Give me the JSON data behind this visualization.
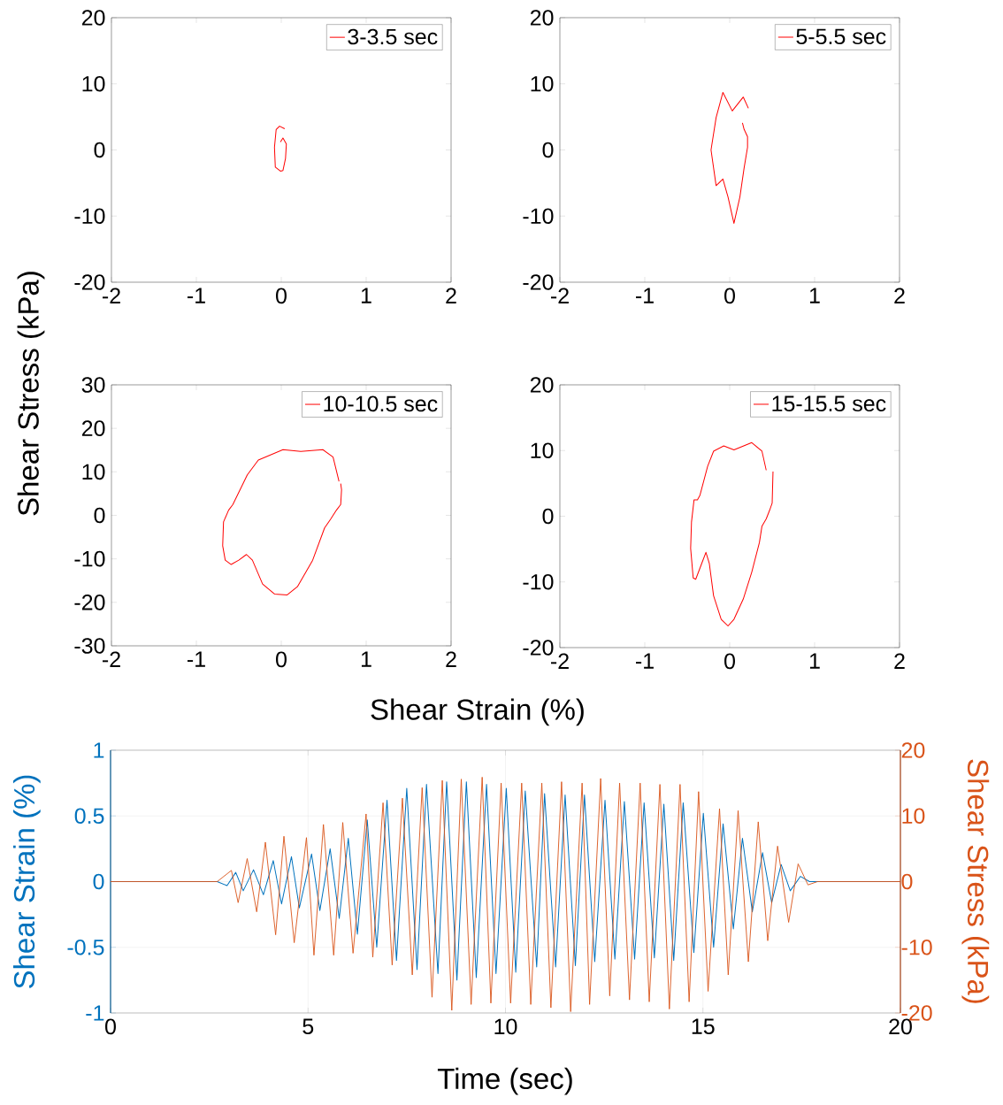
{
  "chart_data": [
    {
      "type": "line",
      "ylabel": "Shear Stress (kPa)",
      "xlim": [
        -2,
        2
      ],
      "ylim": [
        -20,
        20
      ],
      "xticks": [
        -2,
        -1,
        0,
        1,
        2
      ],
      "yticks": [
        -20,
        -10,
        0,
        10,
        20
      ],
      "legend": "top right",
      "series": [
        {
          "name": "3-3.5 sec",
          "color": "#ff0000",
          "x": [
            0.04,
            -0.02,
            -0.06,
            -0.08,
            -0.07,
            -0.01,
            0.02,
            0.05,
            0.06,
            0.02,
            -0.01
          ],
          "values": [
            3.2,
            3.6,
            3.1,
            0.4,
            -2.6,
            -3.2,
            -3.1,
            -1.3,
            0.9,
            1.8,
            1.2
          ]
        }
      ]
    },
    {
      "type": "line",
      "xlim": [
        -2,
        2
      ],
      "ylim": [
        -20,
        20
      ],
      "xticks": [
        -2,
        -1,
        0,
        1,
        2
      ],
      "yticks": [
        -20,
        -10,
        0,
        10,
        20
      ],
      "legend": "top right",
      "series": [
        {
          "name": "5-5.5 sec",
          "color": "#ff0000",
          "x": [
            0.22,
            0.16,
            0.03,
            -0.08,
            -0.16,
            -0.22,
            -0.16,
            -0.08,
            -0.02,
            0.05,
            0.12,
            0.17,
            0.21,
            0.21,
            0.17,
            0.15
          ],
          "values": [
            6.3,
            8.0,
            5.9,
            8.7,
            4.9,
            0,
            -5.4,
            -4.4,
            -7.1,
            -11.1,
            -7.1,
            -2.7,
            0.4,
            2.0,
            3.1,
            4.1
          ]
        }
      ]
    },
    {
      "type": "line",
      "xlabel": "Shear Strain (%)",
      "xlim": [
        -2,
        2
      ],
      "ylim": [
        -30,
        30
      ],
      "xticks": [
        -2,
        -1,
        0,
        1,
        2
      ],
      "yticks": [
        -30,
        -20,
        -10,
        0,
        10,
        20,
        30
      ],
      "legend": "top right",
      "series": [
        {
          "name": "10-10.5 sec",
          "color": "#ff0000",
          "x": [
            0.68,
            0.61,
            0.49,
            0.23,
            0.02,
            -0.27,
            -0.4,
            -0.57,
            -0.62,
            -0.68,
            -0.69,
            -0.66,
            -0.59,
            -0.5,
            -0.41,
            -0.34,
            -0.22,
            -0.08,
            0.07,
            0.19,
            0.37,
            0.51,
            0.58,
            0.65,
            0.7,
            0.71,
            0.7
          ],
          "values": [
            7.8,
            13.4,
            15.1,
            14.7,
            15.1,
            12.7,
            9.3,
            2.5,
            1.2,
            -1.5,
            -7.0,
            -10.3,
            -11.3,
            -10.3,
            -9.0,
            -10.3,
            -15.8,
            -18.1,
            -18.3,
            -16.4,
            -10.3,
            -2.9,
            -0.9,
            1.2,
            2.5,
            5.9,
            7.3
          ]
        }
      ]
    },
    {
      "type": "line",
      "xlim": [
        -2,
        2
      ],
      "ylim": [
        -20,
        20
      ],
      "xticks": [
        -2,
        -1,
        0,
        1,
        2
      ],
      "yticks": [
        -20,
        -10,
        0,
        10,
        20
      ],
      "legend": "top right",
      "series": [
        {
          "name": "15-15.5 sec",
          "color": "#ff0000",
          "x": [
            0.43,
            0.38,
            0.26,
            0.05,
            -0.07,
            -0.19,
            -0.26,
            -0.35,
            -0.38,
            -0.42,
            -0.45,
            -0.46,
            -0.43,
            -0.4,
            -0.33,
            -0.28,
            -0.24,
            -0.19,
            -0.1,
            -0.02,
            0.05,
            0.16,
            0.26,
            0.35,
            0.38,
            0.43,
            0.47,
            0.5,
            0.51
          ],
          "values": [
            7.0,
            9.9,
            11.2,
            10.1,
            10.7,
            9.9,
            7.6,
            3.2,
            2.5,
            2.5,
            -0.9,
            -4.9,
            -9.4,
            -9.6,
            -7.2,
            -5.5,
            -7.2,
            -12.1,
            -15.7,
            -16.7,
            -15.7,
            -12.6,
            -8.5,
            -4.0,
            -1.5,
            -0.4,
            0.9,
            2.0,
            6.8
          ]
        }
      ]
    },
    {
      "type": "line",
      "xlabel": "Time (sec)",
      "ylabel": "Shear Strain (%)",
      "y2label": "Shear Stress (kPa)",
      "xlim": [
        0,
        20
      ],
      "ylim": [
        -1,
        1
      ],
      "y2lim": [
        -20,
        20
      ],
      "xticks": [
        0,
        5,
        10,
        15,
        20
      ],
      "yticks": [
        -1,
        -0.5,
        0,
        0.5,
        1
      ],
      "y2ticks": [
        -20,
        -10,
        0,
        10,
        20
      ],
      "grid": true,
      "series": [
        {
          "color": "#0072bd",
          "x": [
            0,
            2.7,
            2.95,
            3.17,
            3.36,
            3.62,
            3.87,
            4.12,
            4.33,
            4.58,
            4.78,
            5.09,
            5.3,
            5.56,
            5.79,
            6.02,
            6.25,
            6.5,
            6.74,
            7.0,
            7.24,
            7.5,
            7.76,
            8.0,
            8.29,
            8.51,
            8.77,
            9.01,
            9.26,
            9.52,
            9.76,
            10.02,
            10.26,
            10.5,
            10.79,
            10.99,
            11.27,
            11.51,
            11.77,
            12.0,
            12.26,
            12.52,
            12.77,
            13.01,
            13.27,
            13.51,
            13.77,
            14.01,
            14.26,
            14.5,
            14.77,
            15.01,
            15.27,
            15.51,
            15.77,
            16.0,
            16.25,
            16.51,
            16.74,
            16.98,
            17.21,
            17.47,
            17.7,
            20
          ],
          "values": [
            0,
            0,
            -0.03,
            0.07,
            -0.07,
            0.09,
            -0.1,
            0.16,
            -0.17,
            0.19,
            -0.2,
            0.21,
            -0.22,
            0.25,
            -0.28,
            0.33,
            -0.4,
            0.47,
            -0.5,
            0.62,
            -0.6,
            0.71,
            -0.67,
            0.74,
            -0.7,
            0.76,
            -0.75,
            0.76,
            -0.73,
            0.74,
            -0.7,
            0.71,
            -0.69,
            0.69,
            -0.65,
            0.67,
            -0.65,
            0.66,
            -0.64,
            0.66,
            -0.61,
            0.62,
            -0.59,
            0.61,
            -0.59,
            0.6,
            -0.58,
            0.59,
            -0.6,
            0.6,
            -0.54,
            0.52,
            -0.5,
            0.44,
            -0.36,
            0.33,
            -0.23,
            0.22,
            -0.16,
            0.13,
            -0.07,
            0.04,
            0,
            0
          ]
        },
        {
          "color": "#d95319",
          "axis": "y2",
          "x": [
            0,
            2.7,
            3.06,
            3.23,
            3.46,
            3.7,
            3.92,
            4.18,
            4.39,
            4.65,
            4.96,
            5.15,
            5.39,
            5.65,
            5.88,
            6.14,
            6.47,
            6.64,
            6.9,
            7.13,
            7.39,
            7.64,
            7.89,
            8.14,
            8.4,
            8.64,
            8.88,
            9.13,
            9.41,
            9.63,
            9.89,
            10.13,
            10.41,
            10.64,
            10.92,
            11.15,
            11.42,
            11.65,
            11.94,
            12.13,
            12.41,
            12.64,
            12.89,
            13.14,
            13.41,
            13.64,
            13.91,
            14.15,
            14.42,
            14.65,
            14.89,
            15.13,
            15.42,
            15.64,
            15.89,
            16.15,
            16.4,
            16.64,
            16.89,
            17.17,
            17.41,
            17.66,
            17.9,
            20
          ],
          "values": [
            0,
            0,
            1.7,
            -3.2,
            3.5,
            -4.6,
            6.0,
            -8.1,
            6.9,
            -9.3,
            6.7,
            -11.2,
            8.7,
            -11.2,
            9.0,
            -10.9,
            10.3,
            -11.5,
            12.0,
            -12.7,
            12.7,
            -14.2,
            14.3,
            -17.6,
            15.4,
            -19.6,
            15.6,
            -18.7,
            15.9,
            -18.5,
            15.0,
            -18.5,
            15.0,
            -18.7,
            15.0,
            -19.2,
            15.2,
            -19.8,
            15.0,
            -18.7,
            15.7,
            -17.4,
            15.0,
            -18.0,
            15.0,
            -18.3,
            14.8,
            -19.4,
            14.8,
            -18.3,
            13.7,
            -16.7,
            11.1,
            -14.2,
            10.8,
            -12.2,
            9.1,
            -9.0,
            5.4,
            -6.2,
            2.7,
            -0.5,
            0,
            0
          ]
        }
      ]
    }
  ]
}
